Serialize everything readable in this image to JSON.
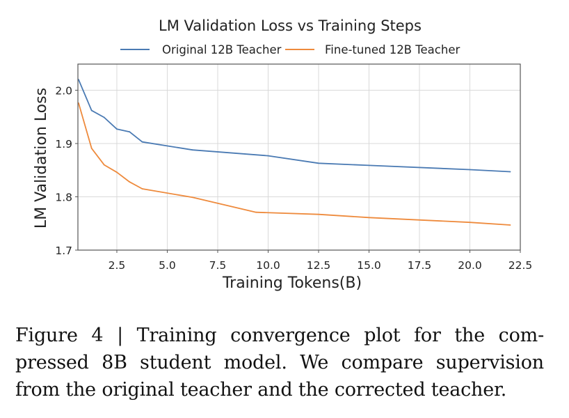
{
  "chart_data": {
    "type": "line",
    "title": "LM Validation Loss vs Training Steps",
    "xlabel": "Training Tokens(B)",
    "ylabel": "LM Validation Loss",
    "xlim": [
      0.57,
      22.5
    ],
    "ylim": [
      1.7,
      2.049
    ],
    "grid": true,
    "legend_position": "top-center",
    "xticks": [
      2.5,
      5.0,
      7.5,
      10.0,
      12.5,
      15.0,
      17.5,
      20.0,
      22.5
    ],
    "xtick_labels": [
      "2.5",
      "5.0",
      "7.5",
      "10.0",
      "12.5",
      "15.0",
      "17.5",
      "20.0",
      "22.5"
    ],
    "yticks": [
      1.7,
      1.8,
      1.9,
      2.0
    ],
    "ytick_labels": [
      "1.7",
      "1.8",
      "1.9",
      "2.0"
    ],
    "series": [
      {
        "name": "Original 12B Teacher",
        "color": "#4a7ab3",
        "x": [
          0.6,
          1.25,
          1.87,
          2.5,
          3.13,
          3.76,
          6.25,
          10.0,
          12.5,
          15.0,
          20.0,
          22.0
        ],
        "y": [
          2.02,
          1.962,
          1.949,
          1.927,
          1.922,
          1.903,
          1.888,
          1.877,
          1.863,
          1.859,
          1.851,
          1.847
        ]
      },
      {
        "name": "Fine-tuned 12B Teacher",
        "color": "#ee8a3c",
        "x": [
          0.6,
          1.25,
          1.87,
          2.5,
          3.13,
          3.76,
          6.25,
          9.4,
          12.5,
          15.0,
          20.0,
          22.0
        ],
        "y": [
          1.976,
          1.891,
          1.86,
          1.846,
          1.828,
          1.815,
          1.799,
          1.771,
          1.767,
          1.761,
          1.752,
          1.747
        ]
      }
    ]
  },
  "caption": {
    "lines": [
      "Figure 4 | Training convergence plot for the com-",
      "pressed 8B student model. We compare supervision",
      "from the original teacher and the corrected teacher."
    ]
  }
}
